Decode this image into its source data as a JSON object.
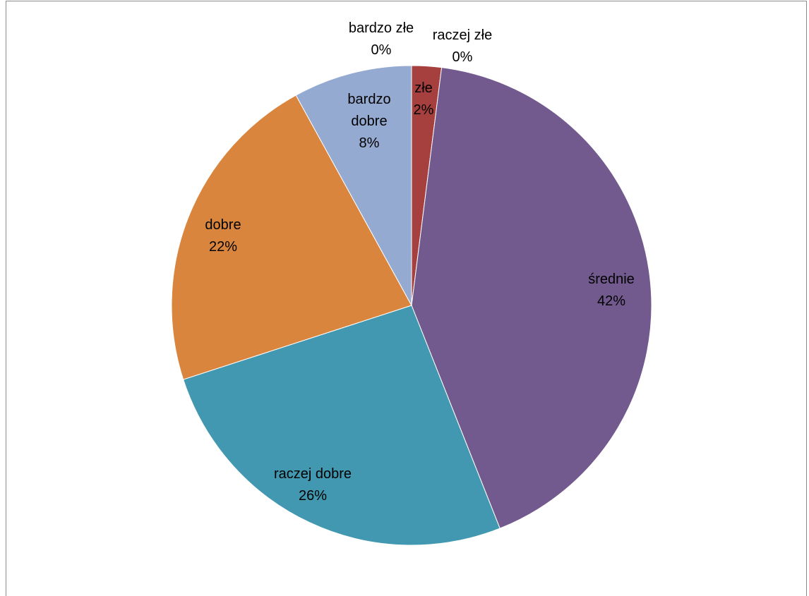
{
  "chart_data": {
    "type": "pie",
    "title": "",
    "start_angle_deg": 0,
    "direction": "clockwise",
    "slices": [
      {
        "name": "bardzo złe",
        "value": 0,
        "label": "0%",
        "color": "#4F81BD"
      },
      {
        "name": "raczej złe",
        "value": 0,
        "label": "0%",
        "color": "#C0504D"
      },
      {
        "name": "złe",
        "value": 2,
        "label": "2%",
        "color": "#A5403F"
      },
      {
        "name": "średnie",
        "value": 42,
        "label": "42%",
        "color": "#72598E"
      },
      {
        "name": "raczej dobre",
        "value": 26,
        "label": "26%",
        "color": "#4298B0"
      },
      {
        "name": "dobre",
        "value": 22,
        "label": "22%",
        "color": "#DA853D"
      },
      {
        "name": "bardzo dobre",
        "value": 8,
        "label": "8%",
        "color": "#95AAD1"
      }
    ]
  }
}
